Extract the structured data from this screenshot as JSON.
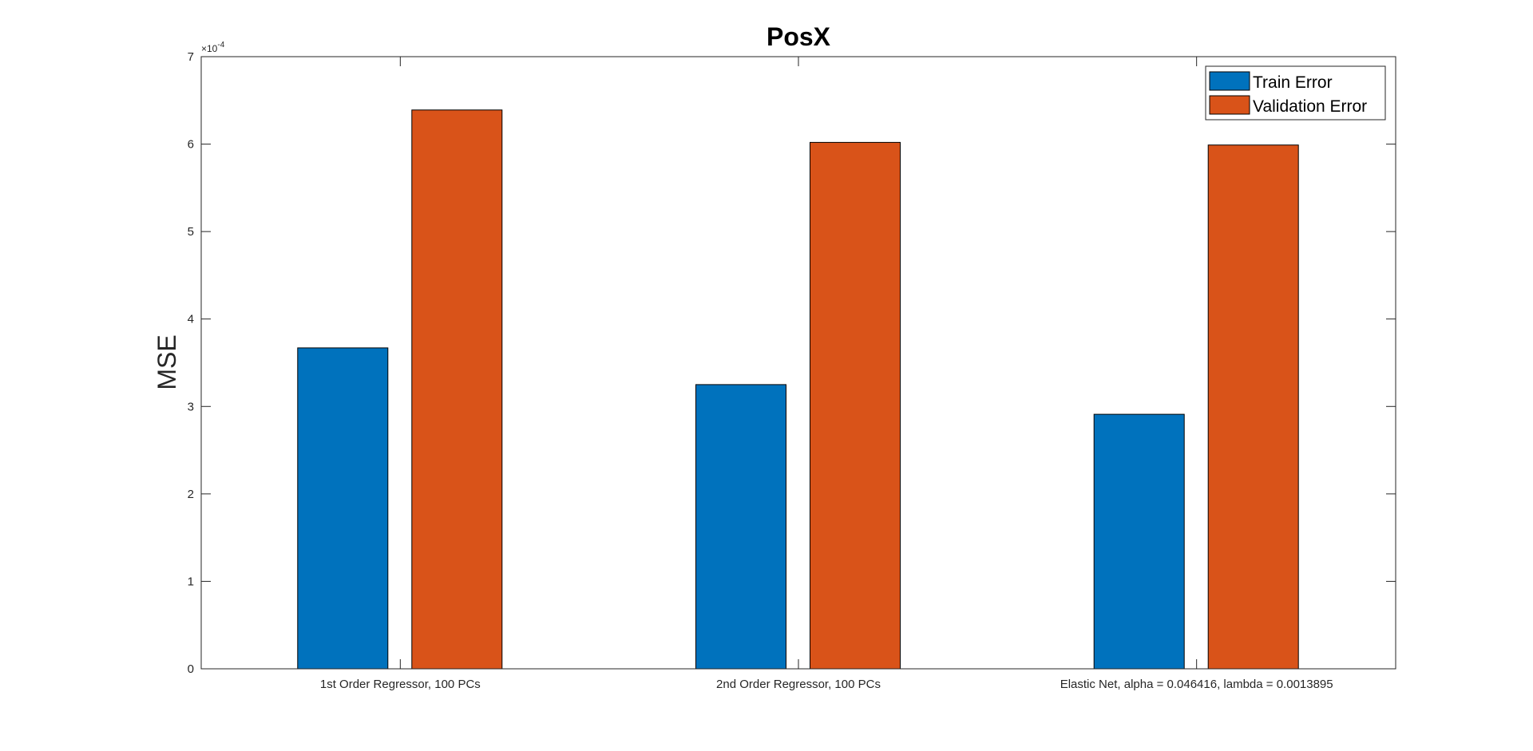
{
  "chart_data": {
    "type": "bar",
    "title": "PosX",
    "xlabel": "",
    "ylabel": "MSE",
    "y_exponent_label": "×10",
    "y_exponent_power": "-4",
    "ylim": [
      0,
      7
    ],
    "yticks": [
      0,
      1,
      2,
      3,
      4,
      5,
      6,
      7
    ],
    "grid": false,
    "legend_position": "top-right",
    "categories": [
      "1st Order Regressor, 100 PCs",
      "2nd Order Regressor, 100 PCs",
      "Elastic Net, alpha = 0.046416, lambda = 0.0013895"
    ],
    "series": [
      {
        "name": "Train Error",
        "color": "#0072BD",
        "values": [
          3.67,
          3.25,
          2.91
        ]
      },
      {
        "name": "Validation Error",
        "color": "#D95319",
        "values": [
          6.39,
          6.02,
          5.99
        ]
      }
    ]
  }
}
